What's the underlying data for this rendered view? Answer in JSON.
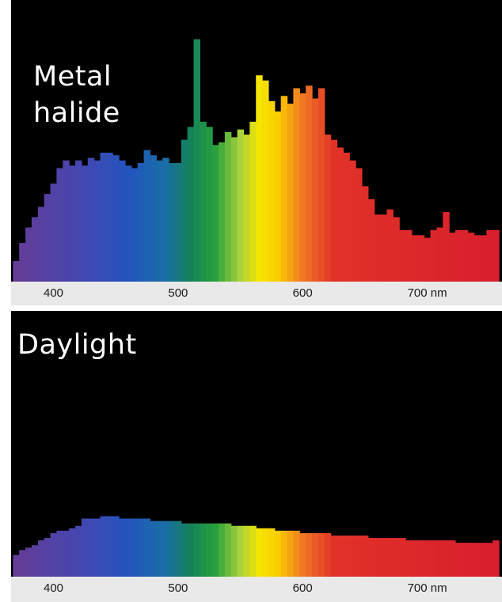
{
  "colors": {
    "background": "#000000",
    "axis_strip": "#e9e9e9",
    "text": "#ffffff"
  },
  "chart_data": [
    {
      "type": "bar",
      "title": "Metal\nhalide",
      "xlabel": "",
      "ylabel": "",
      "x_unit": "nm",
      "xlim": [
        366,
        760
      ],
      "ylim": [
        0,
        100
      ],
      "grid": false,
      "x_ticks": [
        {
          "value": 400,
          "label": "400"
        },
        {
          "value": 500,
          "label": "500"
        },
        {
          "value": 600,
          "label": "600"
        },
        {
          "value": 700,
          "label": "700 nm"
        }
      ],
      "series": [
        {
          "bar_width_nm": 5,
          "x": [
            370,
            375,
            380,
            385,
            390,
            395,
            400,
            405,
            410,
            415,
            420,
            425,
            430,
            435,
            440,
            445,
            450,
            455,
            460,
            465,
            470,
            475,
            480,
            485,
            490,
            495,
            500,
            505,
            510,
            515,
            520,
            525,
            530,
            535,
            540,
            545,
            550,
            555,
            560,
            565,
            570,
            575,
            580,
            585,
            590,
            595,
            600,
            605,
            610,
            615,
            620,
            625,
            630,
            635,
            640,
            645,
            650,
            655,
            660,
            665,
            670,
            675,
            680,
            685,
            690,
            695,
            700,
            705,
            710,
            715,
            720,
            725,
            730,
            735,
            740,
            745,
            750,
            755
          ],
          "values": [
            8,
            15,
            21,
            25,
            29,
            34,
            38,
            44,
            47,
            45,
            47,
            45,
            48,
            47,
            50,
            50,
            49,
            47,
            45,
            44,
            46,
            51,
            49,
            47,
            48,
            46,
            46,
            55,
            60,
            94,
            62,
            60,
            53,
            54,
            58,
            56,
            59,
            57,
            62,
            80,
            78,
            70,
            66,
            72,
            69,
            75,
            73,
            76,
            71,
            75,
            57,
            55,
            52,
            50,
            47,
            44,
            37,
            32,
            26,
            26,
            28,
            25,
            20,
            20,
            18,
            18,
            17,
            20,
            21,
            27,
            19,
            20,
            20,
            19,
            18,
            18,
            20,
            20
          ]
        }
      ]
    },
    {
      "type": "bar",
      "title": "Daylight",
      "xlabel": "",
      "ylabel": "",
      "x_unit": "nm",
      "xlim": [
        366,
        760
      ],
      "ylim": [
        0,
        100
      ],
      "grid": false,
      "x_ticks": [
        {
          "value": 400,
          "label": "400"
        },
        {
          "value": 500,
          "label": "500"
        },
        {
          "value": 600,
          "label": "600"
        },
        {
          "value": 700,
          "label": "700 nm"
        }
      ],
      "series": [
        {
          "bar_width_nm": 5,
          "x": [
            370,
            375,
            380,
            385,
            390,
            395,
            400,
            405,
            410,
            415,
            420,
            425,
            430,
            435,
            440,
            445,
            450,
            455,
            460,
            465,
            470,
            475,
            480,
            485,
            490,
            495,
            500,
            505,
            510,
            515,
            520,
            525,
            530,
            535,
            540,
            545,
            550,
            555,
            560,
            565,
            570,
            575,
            580,
            585,
            590,
            595,
            600,
            605,
            610,
            615,
            620,
            625,
            630,
            635,
            640,
            645,
            650,
            655,
            660,
            665,
            670,
            675,
            680,
            685,
            690,
            695,
            700,
            705,
            710,
            715,
            720,
            725,
            730,
            735,
            740,
            745,
            750,
            755
          ],
          "values": [
            9,
            11,
            12,
            13,
            15,
            16,
            18,
            19,
            19,
            20,
            21,
            24,
            24,
            24,
            25,
            25,
            25,
            24,
            24,
            24,
            24,
            24,
            23,
            23,
            23,
            23,
            23,
            22,
            22,
            22,
            22,
            22,
            22,
            22,
            22,
            21,
            21,
            21,
            21,
            20,
            20,
            20,
            19,
            19,
            19,
            19,
            18,
            18,
            18,
            18,
            18,
            17,
            17,
            17,
            17,
            17,
            17,
            16,
            16,
            16,
            16,
            16,
            16,
            15,
            15,
            15,
            15,
            15,
            15,
            15,
            15,
            14,
            14,
            14,
            14,
            14,
            14,
            15
          ]
        }
      ]
    }
  ]
}
